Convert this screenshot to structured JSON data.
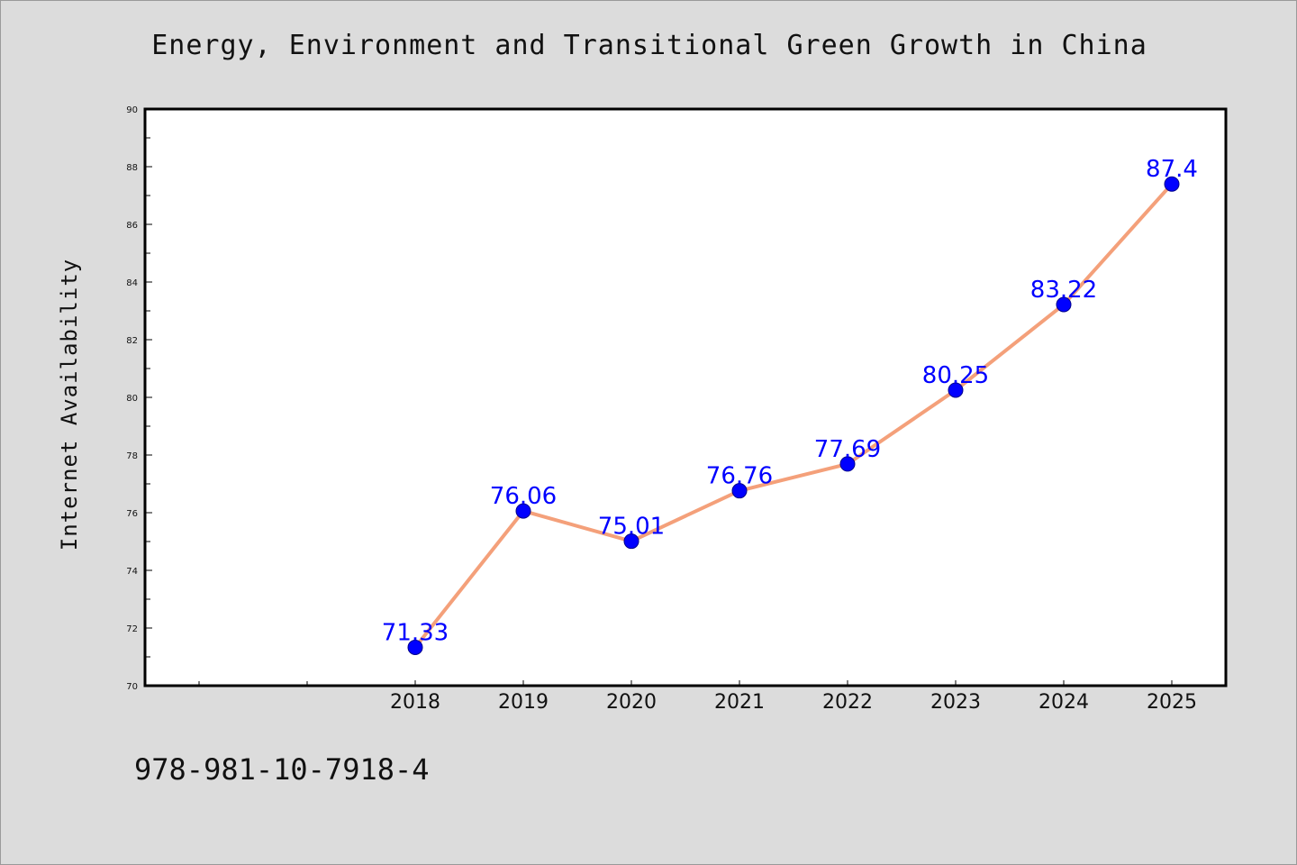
{
  "chart_data": {
    "type": "line",
    "title": "Energy, Environment and Transitional Green Growth in China",
    "xlabel": "",
    "ylabel": "Internet Availability",
    "categories": [
      "2018",
      "2019",
      "2020",
      "2021",
      "2022",
      "2023",
      "2024",
      "2025"
    ],
    "series": [
      {
        "values": [
          71.33,
          76.06,
          75.01,
          76.76,
          77.69,
          80.25,
          83.22,
          87.4
        ],
        "labels": [
          "71.33",
          "76.06",
          "75.01",
          "76.76",
          "77.69",
          "80.25",
          "83.22",
          "87.4"
        ]
      }
    ],
    "ylim": [
      70,
      90
    ],
    "y_ticks": [
      "70",
      "72",
      "74",
      "76",
      "78",
      "80",
      "82",
      "84",
      "86",
      "88",
      "90"
    ],
    "grid": false,
    "legend": "none",
    "colors": {
      "line": "#f4a07a",
      "marker": "#0000ff",
      "data_label": "#0000ff",
      "background": "#dcdcdc",
      "plot_background": "#ffffff"
    }
  },
  "footer": {
    "code": "978-981-10-7918-4"
  }
}
